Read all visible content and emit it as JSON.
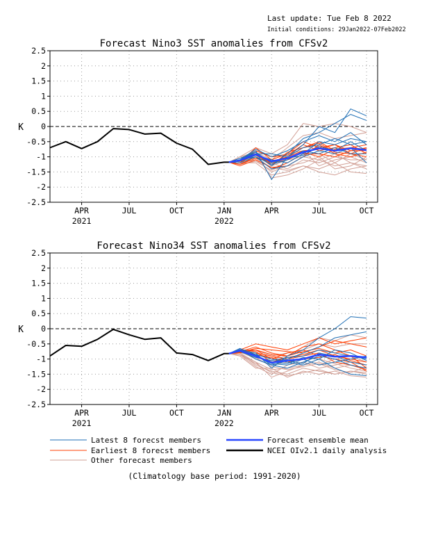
{
  "header": {
    "last_update": "Last update: Tue Feb 8 2022",
    "initial_conditions": "Initial conditions: 29Jan2022-07Feb2022"
  },
  "legend": {
    "latest": "Latest 8 forecst members",
    "earliest": "Earliest 8 forecst members",
    "other": "Other forecast members",
    "mean": "Forecast ensemble mean",
    "obs": "NCEI OIv2.1 daily analysis"
  },
  "footer": "(Climatology base period: 1991-2020)",
  "colors": {
    "latest": "#1e6eb4",
    "earliest": "#ff3c00",
    "other": "#d2a096",
    "mean": "#2846ff",
    "obs": "#000000"
  },
  "chart_data": [
    {
      "type": "line",
      "title": "Forecast Nino3 SST anomalies from CFSv2",
      "ylabel": "K",
      "ylim": [
        -2.5,
        2.5
      ],
      "xlim": [
        0,
        20.7
      ],
      "y_ticks": [
        "2.5",
        "2",
        "1.5",
        "1",
        "0.5",
        "0",
        "-0.5",
        "-1",
        "-1.5",
        "-2",
        "-2.5"
      ],
      "x_ticks": [
        {
          "label": "APR",
          "sub": "2021",
          "x": 2
        },
        {
          "label": "JUL",
          "sub": "",
          "x": 5
        },
        {
          "label": "OCT",
          "sub": "",
          "x": 8
        },
        {
          "label": "JAN",
          "sub": "2022",
          "x": 11
        },
        {
          "label": "APR",
          "sub": "",
          "x": 14
        },
        {
          "label": "JUL",
          "sub": "",
          "x": 17
        },
        {
          "label": "OCT",
          "sub": "",
          "x": 20
        }
      ],
      "grid": true,
      "zero_line": "dashed",
      "observed": {
        "x": [
          0,
          1,
          2,
          3,
          4,
          5,
          6,
          7,
          8,
          9,
          10,
          11,
          11.3
        ],
        "y": [
          -0.7,
          -0.5,
          -0.73,
          -0.5,
          -0.07,
          -0.1,
          -0.25,
          -0.22,
          -0.55,
          -0.75,
          -1.25,
          -1.18,
          -1.18
        ]
      },
      "forecast_x": [
        11.3,
        12,
        13,
        14,
        15,
        16,
        17,
        18,
        19,
        20
      ],
      "ensemble_mean": [
        -1.18,
        -1.12,
        -0.92,
        -1.15,
        -1.05,
        -0.85,
        -0.72,
        -0.8,
        -0.72,
        -0.78
      ],
      "latest_members": [
        [
          -1.18,
          -1.1,
          -0.8,
          -1.75,
          -1.0,
          -0.6,
          0.0,
          -0.2,
          0.58,
          0.35
        ],
        [
          -1.18,
          -1.05,
          -0.85,
          -1.3,
          -0.9,
          -0.4,
          -0.2,
          0.1,
          0.4,
          0.2
        ],
        [
          -1.18,
          -1.15,
          -0.95,
          -1.1,
          -1.2,
          -0.9,
          -0.5,
          -0.6,
          -0.4,
          -0.5
        ],
        [
          -1.18,
          -1.1,
          -0.75,
          -1.0,
          -0.8,
          -0.5,
          -0.3,
          -0.5,
          -0.2,
          -0.6
        ],
        [
          -1.18,
          -1.2,
          -1.0,
          -1.4,
          -1.3,
          -1.0,
          -0.8,
          -0.9,
          -0.7,
          -1.2
        ],
        [
          -1.18,
          -1.05,
          -0.9,
          -0.9,
          -1.0,
          -0.7,
          -0.6,
          -0.4,
          -0.6,
          -0.5
        ],
        [
          -1.18,
          -1.1,
          -1.0,
          -1.25,
          -1.1,
          -0.8,
          -0.9,
          -0.7,
          -0.9,
          -0.9
        ],
        [
          -1.18,
          -1.12,
          -0.85,
          -1.2,
          -1.05,
          -0.95,
          -0.65,
          -0.8,
          -0.5,
          -0.8
        ]
      ],
      "earliest_members": [
        [
          -1.18,
          -1.15,
          -0.85,
          -1.25,
          -1.0,
          -0.7,
          -0.5,
          -0.8,
          -0.7,
          -0.75
        ],
        [
          -1.18,
          -1.2,
          -0.7,
          -1.1,
          -0.9,
          -0.5,
          -0.7,
          -0.6,
          -0.9,
          -0.7
        ],
        [
          -1.18,
          -1.25,
          -1.0,
          -1.4,
          -1.2,
          -0.9,
          -0.9,
          -1.0,
          -0.8,
          -0.8
        ],
        [
          -1.18,
          -1.1,
          -0.8,
          -1.0,
          -0.95,
          -0.6,
          -0.8,
          -0.7,
          -0.6,
          -0.9
        ],
        [
          -1.18,
          -1.3,
          -1.1,
          -1.35,
          -1.3,
          -1.0,
          -0.6,
          -0.9,
          -1.0,
          -0.85
        ],
        [
          -1.18,
          -1.15,
          -0.95,
          -1.2,
          -1.1,
          -0.85,
          -1.0,
          -0.75,
          -0.7,
          -0.6
        ],
        [
          -1.18,
          -1.2,
          -0.9,
          -1.3,
          -0.85,
          -0.7,
          -0.55,
          -0.85,
          -0.9,
          -1.0
        ],
        [
          -1.18,
          -1.25,
          -1.05,
          -1.15,
          -1.0,
          -0.8,
          -0.75,
          -0.6,
          -0.8,
          -0.7
        ]
      ],
      "other_members": [
        [
          -1.18,
          -1.0,
          -0.7,
          -0.9,
          -0.6,
          0.1,
          0.0,
          0.1,
          0.0,
          -0.2
        ],
        [
          -1.18,
          -1.2,
          -1.2,
          -1.6,
          -1.5,
          -1.3,
          -1.4,
          -1.2,
          -1.5,
          -1.55
        ],
        [
          -1.18,
          -1.1,
          -0.9,
          -1.7,
          -1.6,
          -1.4,
          -1.1,
          -1.3,
          -1.2,
          -1.3
        ],
        [
          -1.18,
          -1.15,
          -1.0,
          -1.2,
          -1.4,
          -1.1,
          -1.2,
          -1.0,
          -1.1,
          -1.1
        ],
        [
          -1.18,
          -1.05,
          -0.8,
          -1.0,
          -0.9,
          -0.8,
          -1.3,
          -1.1,
          -1.0,
          -1.2
        ],
        [
          -1.18,
          -1.2,
          -1.1,
          -1.5,
          -1.3,
          -1.2,
          -1.0,
          -1.4,
          -1.3,
          -1.0
        ],
        [
          -1.18,
          -1.1,
          -0.95,
          -1.3,
          -1.1,
          -1.0,
          -1.1,
          -0.9,
          -1.2,
          -1.4
        ],
        [
          -1.18,
          -1.25,
          -1.15,
          -1.45,
          -1.2,
          -0.9,
          -0.9,
          -1.2,
          -0.9,
          -1.1
        ],
        [
          -1.18,
          -1.0,
          -0.85,
          -1.1,
          -0.7,
          -0.3,
          -0.2,
          -0.4,
          -0.3,
          -0.2
        ],
        [
          -1.18,
          -1.1,
          -1.05,
          -1.35,
          -1.45,
          -1.3,
          -1.5,
          -1.6,
          -1.4,
          -1.3
        ]
      ]
    },
    {
      "type": "line",
      "title": "Forecast Nino34 SST anomalies from CFSv2",
      "ylabel": "K",
      "ylim": [
        -2.5,
        2.5
      ],
      "xlim": [
        0,
        20.7
      ],
      "y_ticks": [
        "2.5",
        "2",
        "1.5",
        "1",
        "0.5",
        "0",
        "-0.5",
        "-1",
        "-1.5",
        "-2",
        "-2.5"
      ],
      "x_ticks": [
        {
          "label": "APR",
          "sub": "2021",
          "x": 2
        },
        {
          "label": "JUL",
          "sub": "",
          "x": 5
        },
        {
          "label": "OCT",
          "sub": "",
          "x": 8
        },
        {
          "label": "JAN",
          "sub": "2022",
          "x": 11
        },
        {
          "label": "APR",
          "sub": "",
          "x": 14
        },
        {
          "label": "JUL",
          "sub": "",
          "x": 17
        },
        {
          "label": "OCT",
          "sub": "",
          "x": 20
        }
      ],
      "grid": true,
      "zero_line": "dashed",
      "observed": {
        "x": [
          0,
          1,
          2,
          3,
          4,
          5,
          6,
          7,
          8,
          9,
          10,
          11,
          11.3
        ],
        "y": [
          -0.9,
          -0.55,
          -0.58,
          -0.35,
          -0.02,
          -0.2,
          -0.35,
          -0.3,
          -0.8,
          -0.85,
          -1.05,
          -0.82,
          -0.82
        ]
      },
      "forecast_x": [
        11.3,
        12,
        13,
        14,
        15,
        16,
        17,
        18,
        19,
        20
      ],
      "ensemble_mean": [
        -0.82,
        -0.72,
        -0.9,
        -1.12,
        -1.05,
        -1.0,
        -0.85,
        -0.92,
        -0.9,
        -0.95
      ],
      "latest_members": [
        [
          -0.82,
          -0.7,
          -0.8,
          -1.3,
          -0.9,
          -0.7,
          -0.3,
          0.0,
          0.4,
          0.35
        ],
        [
          -0.82,
          -0.75,
          -0.9,
          -1.1,
          -1.0,
          -0.8,
          -0.6,
          -0.3,
          -0.2,
          -0.1
        ],
        [
          -0.82,
          -0.65,
          -0.85,
          -1.0,
          -1.1,
          -1.2,
          -1.0,
          -1.3,
          -1.5,
          -1.55
        ],
        [
          -0.82,
          -0.7,
          -1.0,
          -1.2,
          -1.3,
          -1.1,
          -0.9,
          -1.0,
          -1.2,
          -1.3
        ],
        [
          -0.82,
          -0.75,
          -0.95,
          -1.05,
          -0.95,
          -0.9,
          -0.7,
          -0.8,
          -0.9,
          -1.0
        ],
        [
          -0.82,
          -0.7,
          -0.9,
          -1.15,
          -1.2,
          -1.0,
          -1.2,
          -1.1,
          -1.0,
          -0.9
        ],
        [
          -0.82,
          -0.72,
          -0.85,
          -1.2,
          -1.05,
          -1.15,
          -0.8,
          -0.9,
          -1.1,
          -1.2
        ],
        [
          -0.82,
          -0.68,
          -0.92,
          -1.1,
          -1.15,
          -0.95,
          -1.0,
          -0.7,
          -0.8,
          -1.05
        ]
      ],
      "earliest_members": [
        [
          -0.82,
          -0.7,
          -0.5,
          -0.6,
          -0.7,
          -0.5,
          -0.3,
          -0.5,
          -0.4,
          -0.3
        ],
        [
          -0.82,
          -0.75,
          -0.6,
          -0.8,
          -0.9,
          -0.6,
          -0.5,
          -0.7,
          -0.9,
          -1.3
        ],
        [
          -0.82,
          -0.8,
          -0.7,
          -1.0,
          -0.8,
          -0.7,
          -0.9,
          -1.0,
          -1.1,
          -1.4
        ],
        [
          -0.82,
          -0.72,
          -0.8,
          -0.9,
          -1.0,
          -0.9,
          -0.8,
          -1.1,
          -1.2,
          -1.35
        ],
        [
          -0.82,
          -0.78,
          -0.65,
          -0.7,
          -0.75,
          -0.8,
          -0.6,
          -0.4,
          -0.5,
          -0.6
        ],
        [
          -0.82,
          -0.7,
          -0.75,
          -1.1,
          -0.95,
          -0.85,
          -0.7,
          -0.9,
          -1.0,
          -1.1
        ],
        [
          -0.82,
          -0.76,
          -0.85,
          -0.95,
          -1.1,
          -1.0,
          -0.95,
          -0.85,
          -1.05,
          -1.2
        ],
        [
          -0.82,
          -0.74,
          -0.7,
          -0.85,
          -0.9,
          -0.75,
          -0.65,
          -0.8,
          -0.7,
          -0.9
        ]
      ],
      "other_members": [
        [
          -0.82,
          -0.8,
          -1.2,
          -1.4,
          -1.5,
          -1.3,
          -1.4,
          -1.5,
          -1.4,
          -1.5
        ],
        [
          -0.82,
          -0.85,
          -1.1,
          -1.6,
          -1.4,
          -1.2,
          -1.1,
          -1.3,
          -1.2,
          -1.3
        ],
        [
          -0.82,
          -0.9,
          -1.3,
          -1.3,
          -1.6,
          -1.4,
          -1.5,
          -1.4,
          -1.55,
          -1.6
        ],
        [
          -0.82,
          -0.75,
          -1.0,
          -1.2,
          -1.1,
          -1.0,
          -1.2,
          -1.0,
          -0.9,
          -1.1
        ],
        [
          -0.82,
          -0.7,
          -0.7,
          -0.9,
          -0.8,
          -0.7,
          -0.5,
          -0.6,
          -0.5,
          -0.5
        ],
        [
          -0.82,
          -0.8,
          -1.1,
          -1.35,
          -1.3,
          -1.2,
          -1.0,
          -1.15,
          -1.3,
          -1.4
        ],
        [
          -0.82,
          -0.85,
          -1.25,
          -1.5,
          -1.2,
          -1.1,
          -1.3,
          -1.2,
          -1.1,
          -1.2
        ],
        [
          -0.82,
          -0.78,
          -0.95,
          -1.25,
          -1.35,
          -1.25,
          -1.15,
          -1.35,
          -1.45,
          -1.25
        ],
        [
          -0.82,
          -0.72,
          -0.8,
          -1.0,
          -0.9,
          -0.6,
          -0.3,
          -0.4,
          -0.2,
          -0.3
        ],
        [
          -0.82,
          -0.86,
          -1.15,
          -1.45,
          -1.55,
          -1.45,
          -1.35,
          -1.5,
          -1.4,
          -1.45
        ]
      ]
    }
  ]
}
